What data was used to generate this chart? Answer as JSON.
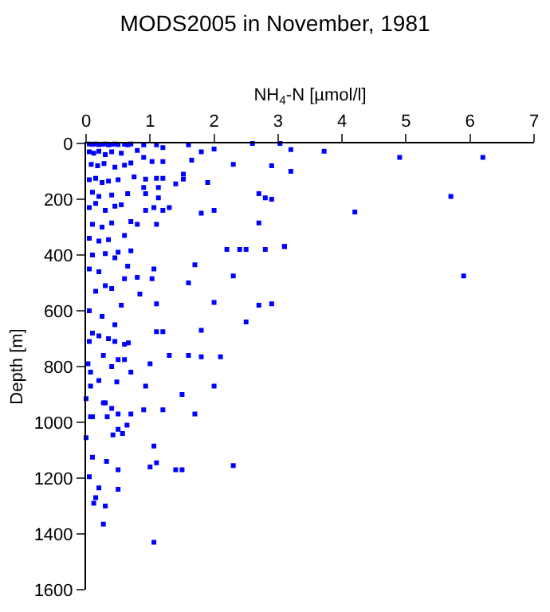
{
  "chart_data": {
    "type": "scatter",
    "title": "MODS2005 in November, 1981",
    "xlabel": "NH$_{4}$-N [µmol/l]",
    "ylabel": "Depth [m]",
    "xlim": [
      0,
      7
    ],
    "xticks": [
      0,
      1,
      2,
      3,
      4,
      5,
      6,
      7
    ],
    "ylim": [
      1600,
      0
    ],
    "yticks": [
      0,
      200,
      400,
      600,
      800,
      1000,
      1200,
      1400,
      1600
    ],
    "grid": false,
    "marker": "square",
    "series": [
      {
        "color": "#0000ff",
        "x": [
          3.2,
          3.72,
          4.9,
          6.2,
          3.2,
          5.7,
          4.2,
          3.1,
          5.9,
          3.03,
          2.6,
          2.0,
          1.8,
          1.6,
          2.3,
          2.9,
          1.65,
          1.9,
          2.7,
          2.8,
          2.9,
          2.0,
          1.8,
          2.7,
          2.2,
          2.4,
          2.5,
          2.8,
          3.1,
          1.7,
          2.3,
          1.6,
          1.06,
          2.0,
          2.7,
          2.9,
          2.5,
          1.8,
          1.2,
          1.1,
          1.1,
          0.84,
          0.8,
          0.6,
          1.03,
          0.7,
          1.1,
          0.8,
          1.2,
          1.3,
          1.06,
          0.93,
          1.13,
          1.13,
          0.9,
          0.93,
          0.93,
          1.1,
          1.2,
          1.4,
          1.52,
          1.52,
          1.03,
          1.2,
          0.9,
          1.2,
          1.1,
          0.9,
          0.65,
          2.1,
          1.8,
          1.6,
          1.3,
          1.0,
          0.6,
          0.5,
          0.4,
          0.7,
          2.0,
          1.5,
          0.93,
          1.2,
          1.7,
          0.9,
          0.7,
          0.5,
          0.64,
          0.57,
          0.42,
          1.06,
          1.1,
          1.0,
          2.3,
          1.5,
          1.4,
          0.5,
          0.32,
          0.1,
          0.05,
          0.2,
          0.5,
          0.15,
          0.12,
          0.3,
          0.27,
          1.06,
          0,
          0,
          0.07,
          0.1,
          0.33,
          0.07,
          0.2,
          0.07,
          0.03,
          0.27,
          0.05,
          0.2,
          0.45,
          0.66,
          0.48,
          0.4,
          0.5,
          0.3,
          0.27,
          0.05,
          0.1,
          0.15,
          0.2,
          0.25,
          0.3,
          0.35,
          0.4,
          0.45,
          0.5,
          0.6,
          0.7,
          0.8,
          0.05,
          0.12,
          0.2,
          0.3,
          0.4,
          0.55,
          0.7,
          0.08,
          0.18,
          0.28,
          0.45,
          0.6,
          0.75,
          0.05,
          0.15,
          0.25,
          0.35,
          0.5,
          0.65,
          0.1,
          0.2,
          0.4,
          0.55,
          0.05,
          0.15,
          0.3,
          0.45,
          0.7,
          0.1,
          0.25,
          0.4,
          0.6,
          0.05,
          0.2,
          0.35,
          0.5,
          0.1,
          0.3,
          0.45,
          0.65,
          0.05,
          0.2,
          0.4,
          0.15,
          0.3,
          0.55,
          0.05,
          0.25,
          0.45,
          0.1,
          0.35,
          0.6
        ],
        "values": [
          22,
          28,
          50,
          50,
          100,
          190,
          246,
          369,
          475,
          0,
          0,
          20,
          30,
          5,
          75,
          80,
          60,
          140,
          180,
          195,
          200,
          240,
          250,
          285,
          380,
          380,
          380,
          380,
          370,
          435,
          475,
          500,
          450,
          570,
          580,
          575,
          640,
          670,
          675,
          675,
          575,
          540,
          480,
          485,
          485,
          385,
          290,
          290,
          240,
          230,
          230,
          240,
          195,
          158,
          158,
          180,
          128,
          125,
          125,
          145,
          110,
          128,
          65,
          65,
          50,
          15,
          5,
          5,
          5,
          765,
          765,
          760,
          760,
          790,
          775,
          775,
          800,
          820,
          870,
          900,
          870,
          955,
          970,
          955,
          970,
          970,
          1010,
          1040,
          1045,
          1085,
          1145,
          1160,
          1155,
          1170,
          1170,
          1170,
          1140,
          1125,
          1195,
          1235,
          1240,
          1270,
          1290,
          1300,
          1365,
          1430,
          1055,
          915,
          980,
          980,
          980,
          870,
          850,
          820,
          790,
          760,
          710,
          690,
          710,
          715,
          855,
          950,
          1025,
          930,
          930,
          2,
          3,
          2,
          4,
          3,
          2,
          5,
          3,
          2,
          4,
          3,
          2,
          25,
          30,
          35,
          28,
          40,
          30,
          35,
          70,
          75,
          80,
          72,
          85,
          78,
          120,
          130,
          125,
          140,
          135,
          130,
          180,
          175,
          190,
          185,
          220,
          230,
          215,
          240,
          225,
          280,
          290,
          300,
          285,
          330,
          340,
          350,
          345,
          390,
          400,
          395,
          410,
          440,
          450,
          460,
          520,
          530,
          510,
          580,
          600,
          620,
          650,
          680,
          700,
          720
        ]
      }
    ]
  }
}
